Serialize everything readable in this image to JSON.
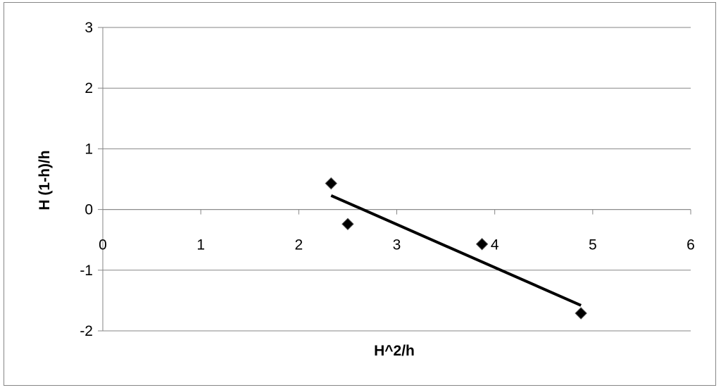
{
  "chart_data": {
    "type": "scatter",
    "title": "",
    "xlabel": "H^2/h",
    "ylabel": "H (1-h)/h",
    "xlim": [
      0,
      6
    ],
    "ylim": [
      -2,
      3
    ],
    "x_ticks": [
      "0",
      "1",
      "2",
      "3",
      "4",
      "5",
      "6"
    ],
    "y_ticks": [
      "-2",
      "-1",
      "0",
      "1",
      "2",
      "3"
    ],
    "grid": "horizontal",
    "legend": "none",
    "series": [
      {
        "points": [
          {
            "x": 2.33,
            "y": 0.43
          },
          {
            "x": 2.5,
            "y": -0.24
          },
          {
            "x": 3.87,
            "y": -0.57
          },
          {
            "x": 4.88,
            "y": -1.71
          }
        ],
        "marker": "diamond",
        "color": "#000000"
      }
    ],
    "trendline": {
      "type": "linear",
      "from": {
        "x": 2.33,
        "y": 0.23
      },
      "to": {
        "x": 4.88,
        "y": -1.58
      },
      "color": "#000000"
    }
  }
}
